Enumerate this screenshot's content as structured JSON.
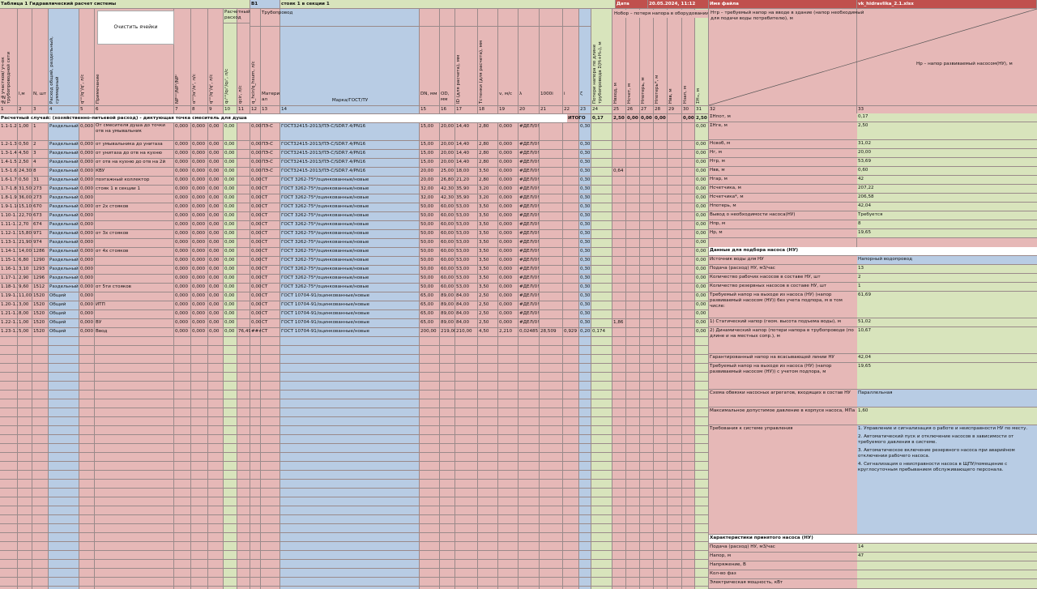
{
  "header": {
    "title": "Таблица 1 Гидравлический расчет системы",
    "network": "В1",
    "riser": "стояк 1 в секции 1",
    "date_label": "Дата",
    "date": "20.05.2024, 11:12",
    "file_label": "Имя файла",
    "file": "vk_hidravlika_2.1.xlsx"
  },
  "button": "Очистить ячейки",
  "group_headers": [
    "Расчетный расход",
    "Трубопровод"
  ],
  "column_headers": [
    "№№участков/ уч-ок трубопроводной сети",
    "l,м",
    "N, шт",
    "Расход общий, раздельный, суммарный",
    "qᵗᵒᵗ/qʰ/qᶜ, л/с",
    "Примечание",
    "NPᵗᵒᵗ/NPʰ/NPᶜ",
    "αᵗᵒᵗ/αʰ/αᶜ, л/с",
    "qᵗᵒᵗ/qʰ/qᶜ, л/с",
    "q₀ᵗᵒᵗ/q₀ʰ/q₀ᶜ, л/с",
    "qcir, л/с",
    "q_hcir/q_hsum, л/с",
    "Матери ал",
    "Марка/ГОСТ/ТУ",
    "DN, мм",
    "OD, мм",
    "ID (для расчета), мм",
    "Tстенки (для расчета), мм",
    "v, м/с",
    "λ",
    "1000i",
    "i",
    "ζ",
    "Потери напора по длине трубопровода Σ(Hₗ+Hₘ), м",
    "Hвход, м",
    "Hсчет, м",
    "Hпотерь, м",
    "Hпотерь*, м",
    "Hвв, м",
    "Hзап, м",
    "ΣHₘ, м"
  ],
  "column_numbers": [
    1,
    2,
    3,
    4,
    5,
    6,
    7,
    8,
    9,
    10,
    11,
    12,
    13,
    14,
    15,
    16,
    17,
    18,
    19,
    20,
    21,
    22,
    23,
    24,
    25,
    26,
    27,
    28,
    29,
    30,
    31,
    32,
    33
  ],
  "case_row": {
    "text": "Расчетный случай: (хозяйственно-питьевой расход) - диктующая точка смеситель для душа",
    "total_label": "ИТОГО",
    "total": "0,17",
    "totals": [
      "2,50",
      "0,00",
      "0,00",
      "0,00",
      "0,00",
      "2,50"
    ]
  },
  "rows": [
    [
      "1.1-1.2",
      "1,00",
      "1",
      "Раздельный",
      "0,000",
      "От смесителя душа до точки отв на умывальник",
      "0,000",
      "0,000",
      "0,00",
      "0,00",
      null,
      "0,00",
      "ПЭ-С",
      "ГОСТ32415-2013/ПЭ-С/SDR7.4/PN16",
      "15,00",
      "20,00",
      "14,40",
      "2,80",
      "0,000",
      "#ДЕЛ/0!",
      null,
      null,
      "0,30",
      null,
      null,
      null,
      null,
      null,
      null,
      null,
      "0,00"
    ],
    [
      "1.2-1.3",
      "0,50",
      "2",
      "Раздельный",
      "0,000",
      "от умывальника до унитаза",
      "0,000",
      "0,000",
      "0,00",
      "0,00",
      null,
      "0,00",
      "ПЭ-С",
      "ГОСТ32415-2013/ПЭ-С/SDR7.4/PN16",
      "15,00",
      "20,00",
      "14,40",
      "2,80",
      "0,000",
      "#ДЕЛ/0!",
      null,
      null,
      "0,30",
      null,
      null,
      null,
      null,
      null,
      null,
      null,
      "0,00"
    ],
    [
      "1.3-1.4",
      "4,50",
      "3",
      "Раздельный",
      "0,000",
      "от унитаза до отв на кухню",
      "0,000",
      "0,000",
      "0,00",
      "0,00",
      null,
      "0,00",
      "ПЭ-С",
      "ГОСТ32415-2013/ПЭ-С/SDR7.4/PN16",
      "15,00",
      "20,00",
      "14,40",
      "2,80",
      "0,000",
      "#ДЕЛ/0!",
      null,
      null,
      "0,30",
      null,
      null,
      null,
      null,
      null,
      null,
      null,
      "0,00"
    ],
    [
      "1.4-1.5",
      "2,50",
      "4",
      "Раздельный",
      "0,000",
      "от отв на кухню до отв на 2й",
      "0,000",
      "0,000",
      "0,00",
      "0,00",
      null,
      "0,00",
      "ПЭ-С",
      "ГОСТ32415-2013/ПЭ-С/SDR7.4/PN16",
      "15,00",
      "20,00",
      "14,40",
      "2,80",
      "0,000",
      "#ДЕЛ/0!",
      null,
      null,
      "0,30",
      null,
      null,
      null,
      null,
      null,
      null,
      null,
      "0,00"
    ],
    [
      "1.5-1.6",
      "24,30",
      "8",
      "Раздельный",
      "0,000",
      "КВУ",
      "0,000",
      "0,000",
      "0,00",
      "0,00",
      null,
      "0,00",
      "ПЭ-С",
      "ГОСТ32415-2013/ПЭ-С/SDR7.4/PN16",
      "20,00",
      "25,00",
      "18,00",
      "3,50",
      "0,000",
      "#ДЕЛ/0!",
      null,
      null,
      "0,30",
      null,
      "0,64",
      null,
      null,
      null,
      null,
      null,
      "0,00"
    ],
    [
      "1.6-1.7",
      "0,50",
      "31",
      "Раздельный",
      "0,000",
      "поэтажный коллектор",
      "0,000",
      "0,000",
      "0,00",
      "0,00",
      null,
      "0,00",
      "СТ",
      "ГОСТ 3262-75*/оцинкованные/новые",
      "20,00",
      "26,80",
      "21,20",
      "2,80",
      "0,000",
      "#ДЕЛ/0!",
      null,
      null,
      "0,30",
      null,
      null,
      null,
      null,
      null,
      null,
      null,
      "0,00"
    ],
    [
      "1.7-1.8",
      "31,50",
      "273",
      "Раздельный",
      "0,000",
      "стояк 1 в секции 1",
      "0,000",
      "0,000",
      "0,00",
      "0,00",
      null,
      "0,00",
      "СТ",
      "ГОСТ 3262-75*/оцинкованные/новые",
      "32,00",
      "42,30",
      "35,90",
      "3,20",
      "0,000",
      "#ДЕЛ/0!",
      null,
      null,
      "0,30",
      null,
      null,
      null,
      null,
      null,
      null,
      null,
      "0,00"
    ],
    [
      "1.8-1.9",
      "36,00",
      "273",
      "Раздельный",
      "0,000",
      null,
      "0,000",
      "0,000",
      "0,00",
      "0,00",
      null,
      "0,00",
      "СТ",
      "ГОСТ 3262-75*/оцинкованные/новые",
      "32,00",
      "42,30",
      "35,90",
      "3,20",
      "0,000",
      "#ДЕЛ/0!",
      null,
      null,
      "0,30",
      null,
      null,
      null,
      null,
      null,
      null,
      null,
      "0,00"
    ],
    [
      "1.9-1.10",
      "15,10",
      "670",
      "Раздельный",
      "0,000",
      "от 2х стояков",
      "0,000",
      "0,000",
      "0,00",
      "0,00",
      null,
      "0,00",
      "СТ",
      "ГОСТ 3262-75*/оцинкованные/новые",
      "50,00",
      "60,00",
      "53,00",
      "3,50",
      "0,000",
      "#ДЕЛ/0!",
      null,
      null,
      "0,30",
      null,
      null,
      null,
      null,
      null,
      null,
      null,
      "0,00"
    ],
    [
      "1.10-1.11",
      "22,70",
      "673",
      "Раздельный",
      "0,000",
      null,
      "0,000",
      "0,000",
      "0,00",
      "0,00",
      null,
      "0,00",
      "СТ",
      "ГОСТ 3262-75*/оцинкованные/новые",
      "50,00",
      "60,00",
      "53,00",
      "3,50",
      "0,000",
      "#ДЕЛ/0!",
      null,
      null,
      "0,30",
      null,
      null,
      null,
      null,
      null,
      null,
      null,
      "0,00"
    ],
    [
      "1.11-1.12",
      "2,70",
      "674",
      "Раздельный",
      "0,000",
      null,
      "0,000",
      "0,000",
      "0,00",
      "0,00",
      null,
      "0,00",
      "СТ",
      "ГОСТ 3262-75*/оцинкованные/новые",
      "50,00",
      "60,00",
      "53,00",
      "3,50",
      "0,000",
      "#ДЕЛ/0!",
      null,
      null,
      "0,30",
      null,
      null,
      null,
      null,
      null,
      null,
      null,
      "0,00"
    ],
    [
      "1.12-1.13",
      "15,80",
      "971",
      "Раздельный",
      "0,000",
      "от 3х стояков",
      "0,000",
      "0,000",
      "0,00",
      "0,00",
      null,
      "0,00",
      "СТ",
      "ГОСТ 3262-75*/оцинкованные/новые",
      "50,00",
      "60,00",
      "53,00",
      "3,50",
      "0,000",
      "#ДЕЛ/0!",
      null,
      null,
      "0,30",
      null,
      null,
      null,
      null,
      null,
      null,
      null,
      "0,00"
    ],
    [
      "1.13-1.14",
      "21,90",
      "974",
      "Раздельный",
      "0,000",
      null,
      "0,000",
      "0,000",
      "0,00",
      "0,00",
      null,
      "0,00",
      "СТ",
      "ГОСТ 3262-75*/оцинкованные/новые",
      "50,00",
      "60,00",
      "53,00",
      "3,50",
      "0,000",
      "#ДЕЛ/0!",
      null,
      null,
      "0,30",
      null,
      null,
      null,
      null,
      null,
      null,
      null,
      "0,00"
    ],
    [
      "1.14-1.15",
      "14,00",
      "1286",
      "Раздельный",
      "0,000",
      "от 4х стояков",
      "0,000",
      "0,000",
      "0,00",
      "0,00",
      null,
      "0,00",
      "СТ",
      "ГОСТ 3262-75*/оцинкованные/новые",
      "50,00",
      "60,00",
      "53,00",
      "3,50",
      "0,000",
      "#ДЕЛ/0!",
      null,
      null,
      "0,30",
      null,
      null,
      null,
      null,
      null,
      null,
      null,
      "0,00"
    ],
    [
      "1.15-1.16",
      "6,80",
      "1290",
      "Раздельный",
      "0,000",
      null,
      "0,000",
      "0,000",
      "0,00",
      "0,00",
      null,
      "0,00",
      "СТ",
      "ГОСТ 3262-75*/оцинкованные/новые",
      "50,00",
      "60,00",
      "53,00",
      "3,50",
      "0,000",
      "#ДЕЛ/0!",
      null,
      null,
      "0,30",
      null,
      null,
      null,
      null,
      null,
      null,
      null,
      "0,00"
    ],
    [
      "1.16-1.17",
      "3,10",
      "1293",
      "Раздельный",
      "0,000",
      null,
      "0,000",
      "0,000",
      "0,00",
      "0,00",
      null,
      "0,00",
      "СТ",
      "ГОСТ 3262-75*/оцинкованные/новые",
      "50,00",
      "60,00",
      "53,00",
      "3,50",
      "0,000",
      "#ДЕЛ/0!",
      null,
      null,
      "0,30",
      null,
      null,
      null,
      null,
      null,
      null,
      null,
      "0,00"
    ],
    [
      "1.17-1.18",
      "2,90",
      "1296",
      "Раздельный",
      "0,000",
      null,
      "0,000",
      "0,000",
      "0,00",
      "0,00",
      null,
      "0,00",
      "СТ",
      "ГОСТ 3262-75*/оцинкованные/новые",
      "50,00",
      "60,00",
      "53,00",
      "3,50",
      "0,000",
      "#ДЕЛ/0!",
      null,
      null,
      "0,30",
      null,
      null,
      null,
      null,
      null,
      null,
      null,
      "0,00"
    ],
    [
      "1.18-1.19",
      "9,60",
      "1512",
      "Раздельный",
      "0,000",
      "от 5ти стояков",
      "0,000",
      "0,000",
      "0,00",
      "0,00",
      null,
      "0,00",
      "СТ",
      "ГОСТ 3262-75*/оцинкованные/новые",
      "50,00",
      "60,00",
      "53,00",
      "3,50",
      "0,000",
      "#ДЕЛ/0!",
      null,
      null,
      "0,30",
      null,
      null,
      null,
      null,
      null,
      null,
      null,
      "0,00"
    ],
    [
      "1.19-1.20",
      "11,00",
      "1520",
      "Общий",
      "0,000",
      null,
      "0,000",
      "0,000",
      "0,00",
      "0,00",
      null,
      "0,00",
      "СТ",
      "ГОСТ 10704-91/оцинкованные/новые",
      "65,00",
      "89,00",
      "84,00",
      "2,50",
      "0,000",
      "#ДЕЛ/0!",
      null,
      null,
      "0,30",
      null,
      null,
      null,
      null,
      null,
      null,
      null,
      "0,00"
    ],
    [
      "1.20-1.21",
      "3,00",
      "1520",
      "Общий",
      "0,000",
      "ИТП",
      "0,000",
      "0,000",
      "0,00",
      "0,00",
      null,
      "0,00",
      "СТ",
      "ГОСТ 10704-91/оцинкованные/новые",
      "65,00",
      "89,00",
      "84,00",
      "2,50",
      "0,000",
      "#ДЕЛ/0!",
      null,
      null,
      "0,30",
      null,
      null,
      null,
      null,
      null,
      null,
      null,
      "0,00"
    ],
    [
      "1.21-1.22",
      "8,00",
      "1520",
      "Общий",
      "0,000",
      null,
      "0,000",
      "0,000",
      "0,00",
      "0,00",
      null,
      "0,00",
      "СТ",
      "ГОСТ 10704-91/оцинкованные/новые",
      "65,00",
      "89,00",
      "84,00",
      "2,50",
      "0,000",
      "#ДЕЛ/0!",
      null,
      null,
      "0,30",
      null,
      null,
      null,
      null,
      null,
      null,
      null,
      "0,00"
    ],
    [
      "1.22-1.23",
      "1,00",
      "1520",
      "Общий",
      "0,000",
      "ВУ",
      "0,000",
      "0,000",
      "0,00",
      "0,00",
      null,
      "0,00",
      "СТ",
      "ГОСТ 10704-91/оцинкованные/новые",
      "65,00",
      "89,00",
      "84,00",
      "2,50",
      "0,000",
      "#ДЕЛ/0!",
      null,
      null,
      "0,30",
      null,
      "1,86",
      null,
      null,
      null,
      null,
      null,
      "0,00"
    ],
    [
      "1.23-1.24",
      "5,00",
      "1520",
      "Общий",
      "0,000",
      "Ввод",
      "0,000",
      "0,000",
      "0,00",
      "0,00",
      "76,49",
      "###",
      "СТ",
      "ГОСТ 10704-91/оцинкованные/новые",
      "200,00",
      "219,00",
      "210,00",
      "4,50",
      "2,210",
      "0,02485",
      "28,509",
      "0,929",
      "0,20",
      "0,174",
      null,
      null,
      null,
      null,
      null,
      null,
      "0,00"
    ]
  ],
  "side_header": {
    "h_loss": "Hобор – потеря напора в оборудовании, м",
    "h_req": "Hтр – требуемый напор на вводе в здание (напор необходимый для подачи воды потребителю), м",
    "h_pump": "Нр – напор развиваемый насосом(НУ), м"
  },
  "side": [
    {
      "label": "ΣHпот, м",
      "value": "0,17"
    },
    {
      "label": "ΣHге, м",
      "value": "2,50"
    },
    {
      "label": "Hсвоб, м",
      "value": "31,02"
    },
    {
      "label": "Hг, м",
      "value": "20,00"
    },
    {
      "label": "Hтр, м",
      "value": "53,69"
    },
    {
      "label": "Hвв, м",
      "value": "0,60"
    },
    {
      "label": "Hгар, м",
      "value": "42"
    },
    {
      "label": "Hсчетчика, м",
      "value": "207,22"
    },
    {
      "label": "Hсчетчика*, м",
      "value": "206,58"
    },
    {
      "label": "Hпотерь, м",
      "value": "42,04"
    },
    {
      "label": "Вывод о необходимости насоса(НУ)",
      "value": "Требуется"
    },
    {
      "label": "Hпр, м",
      "value": "8"
    },
    {
      "label": "Hр, м",
      "value": "19,65"
    },
    {
      "label": "Данные для подбора насоса (НУ)"
    },
    {
      "label": "Источник воды для НУ",
      "value": "Напорный водопровод"
    },
    {
      "label": "Подача (расход) НУ, м3/час",
      "value": "13"
    },
    {
      "label": "Количество рабочих насосов в составе НУ, шт",
      "value": "2"
    },
    {
      "label": "Количество резервных насосов в составе НУ, шт",
      "value": "1"
    },
    {
      "label": "Требуемый напор на выходе из насоса (НУ) (напор развиваемый насосом (НУ)) без учета подпора, м в том числе:",
      "value": "61,69"
    },
    {
      "label": "1) Статический напор (геом. высота подъема воды), м",
      "value": "51,02"
    },
    {
      "label": "2) Динамический напор (потери напора в трубопроводе (по длине и на местных сопр.), м",
      "value": "10,67"
    },
    {
      "label": "Гарантированный напор на всасывающей линии НУ",
      "value": "42,04"
    },
    {
      "label": "Требуемый напор на выходе из насоса (НУ) (напор развиваемый насосом (НУ)) с учетом подпора, м",
      "value": "19,65"
    },
    {
      "label": "Схема обвязки насосных агрегатов, входящих в состав НУ",
      "value": "Параллельная"
    },
    {
      "label": "Максимальное допустимое давление в корпусе насоса, МПа",
      "value": "1,60"
    },
    {
      "label": "Требования к системе управления",
      "items": [
        "1. Управление и сигнализация о работе и неисправности НУ по месту.",
        "2. Автоматический пуск и отключение насосов в зависимости от требуемого давления в системе.",
        "3. Автоматическое включение резервного насоса при аварийном отключении рабочего насоса.",
        "4. Сигнализация о неисправности насоса в ЩПУ/помещение с круглосуточным пребыванием обслуживающего персонала."
      ]
    },
    {
      "label": "Характеристики принятого насоса (НУ)"
    },
    {
      "label": "Подача (расход) НУ, м3/час",
      "value": "14"
    },
    {
      "label": "Напор, м",
      "value": "47"
    },
    {
      "label": "Напряжение, В"
    },
    {
      "label": "Кол-во фаз"
    },
    {
      "label": "Электрическая мощность, кВт"
    }
  ]
}
